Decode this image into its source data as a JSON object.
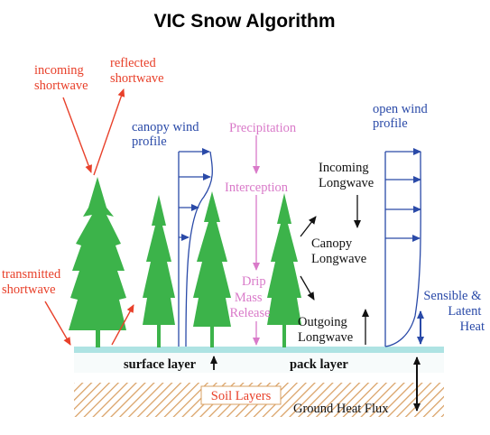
{
  "title": "VIC Snow Algorithm",
  "labels": {
    "incoming_shortwave": [
      "incoming",
      "shortwave"
    ],
    "reflected_shortwave": [
      "reflected",
      "shortwave"
    ],
    "transmitted_shortwave": [
      "transmitted",
      "shortwave"
    ],
    "canopy_wind_profile": [
      "canopy wind",
      "profile"
    ],
    "open_wind_profile": [
      "open wind",
      "profile"
    ],
    "precipitation": "Precipitation",
    "interception": "Interception",
    "drip": "Drip",
    "mass_release": [
      "Mass",
      "Release"
    ],
    "incoming_longwave": [
      "Incoming",
      "Longwave"
    ],
    "canopy_longwave": [
      "Canopy",
      "Longwave"
    ],
    "outgoing_longwave": [
      "Outgoing",
      "Longwave"
    ],
    "sensible_latent_heat": [
      "Sensible &",
      "Latent",
      "Heat"
    ],
    "surface_layer": "surface layer",
    "pack_layer": "pack layer",
    "soil_layers": "Soil Layers",
    "ground_heat_flux": "Ground Heat Flux"
  },
  "colors": {
    "shortwave": "#e8402a",
    "wind": "#2a4aa8",
    "precip": "#d97ac9",
    "tree": "#3cb34a",
    "snow": "#aee3e3",
    "soil": "#d9a063",
    "longwave": "#111111"
  }
}
